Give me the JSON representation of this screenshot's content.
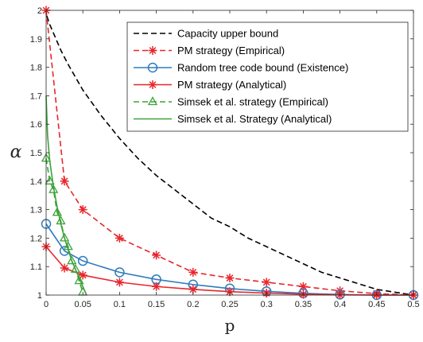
{
  "chart_data": {
    "type": "line",
    "xlabel": "p",
    "ylabel": "α",
    "xlim": [
      0,
      0.5
    ],
    "ylim": [
      1,
      2
    ],
    "grid": false,
    "legend_position": "top-right",
    "x_ticks": [
      "0",
      "0.05",
      "0.1",
      "0.15",
      "0.2",
      "0.25",
      "0.3",
      "0.35",
      "0.4",
      "0.45",
      "0.5"
    ],
    "y_ticks": [
      "1",
      "1.1",
      "1.2",
      "1.3",
      "1.4",
      "1.5",
      "1.6",
      "1.7",
      "1.8",
      "1.9",
      "2"
    ],
    "series": [
      {
        "name": "Capacity upper bound",
        "color": "#000000",
        "line": "dashed",
        "marker": "none",
        "x": [
          0.001,
          0.005,
          0.01,
          0.02,
          0.03,
          0.05,
          0.075,
          0.1,
          0.125,
          0.15,
          0.175,
          0.2,
          0.225,
          0.25,
          0.275,
          0.3,
          0.325,
          0.35,
          0.375,
          0.4,
          0.425,
          0.45,
          0.475,
          0.5
        ],
        "y": [
          1.98,
          1.95,
          1.92,
          1.86,
          1.81,
          1.72,
          1.63,
          1.55,
          1.48,
          1.42,
          1.37,
          1.32,
          1.27,
          1.24,
          1.2,
          1.17,
          1.14,
          1.11,
          1.08,
          1.06,
          1.04,
          1.02,
          1.01,
          1.0
        ]
      },
      {
        "name": "PM strategy (Empirical)",
        "color": "#e8262b",
        "line": "dashed",
        "marker": "star",
        "x": [
          0,
          0.025,
          0.05,
          0.1,
          0.15,
          0.2,
          0.25,
          0.3,
          0.35,
          0.4,
          0.45,
          0.5
        ],
        "y": [
          2.0,
          1.4,
          1.3,
          1.2,
          1.14,
          1.08,
          1.06,
          1.045,
          1.03,
          1.015,
          1.005,
          1.0
        ]
      },
      {
        "name": "Random tree code bound (Existence)",
        "color": "#2f7bbf",
        "line": "solid",
        "marker": "circle",
        "x": [
          0,
          0.025,
          0.05,
          0.1,
          0.15,
          0.2,
          0.25,
          0.3,
          0.35,
          0.4,
          0.45,
          0.5
        ],
        "y": [
          1.25,
          1.155,
          1.12,
          1.08,
          1.055,
          1.037,
          1.023,
          1.013,
          1.006,
          1.002,
          1.0,
          1.0
        ]
      },
      {
        "name": "PM strategy (Analytical)",
        "color": "#e8262b",
        "line": "solid",
        "marker": "star",
        "x": [
          0,
          0.025,
          0.05,
          0.1,
          0.15,
          0.2,
          0.25,
          0.3,
          0.35,
          0.4,
          0.45,
          0.5
        ],
        "y": [
          1.17,
          1.095,
          1.07,
          1.045,
          1.03,
          1.02,
          1.012,
          1.007,
          1.003,
          1.001,
          1.0,
          1.0
        ]
      },
      {
        "name": "Simsek et al. strategy (Empirical)",
        "color": "#3da33a",
        "line": "dashed",
        "marker": "triangle",
        "x": [
          0,
          0.005,
          0.01,
          0.015,
          0.02,
          0.025,
          0.03,
          0.035,
          0.04,
          0.045,
          0.05
        ],
        "y": [
          1.48,
          1.4,
          1.37,
          1.29,
          1.26,
          1.2,
          1.17,
          1.12,
          1.09,
          1.05,
          1.01
        ]
      },
      {
        "name": "Simsek et al. Strategy (Analytical)",
        "color": "#3da33a",
        "line": "solid",
        "marker": "none",
        "x": [
          0,
          0.002,
          0.005,
          0.01,
          0.015,
          0.02,
          0.025,
          0.03,
          0.035,
          0.04,
          0.045,
          0.05,
          0.055
        ],
        "y": [
          1.7,
          1.56,
          1.47,
          1.38,
          1.31,
          1.25,
          1.2,
          1.16,
          1.12,
          1.09,
          1.06,
          1.03,
          1.0
        ]
      }
    ]
  }
}
